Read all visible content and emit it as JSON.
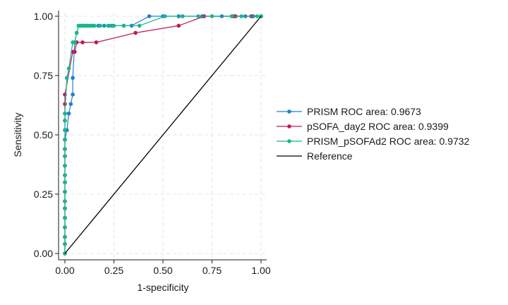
{
  "chart_data": {
    "type": "line",
    "title": "",
    "xlabel": "1-specificity",
    "ylabel": "Sensitivity",
    "xlim": [
      0,
      1
    ],
    "ylim": [
      0,
      1
    ],
    "xticks": [
      "0.00",
      "0.25",
      "0.50",
      "0.75",
      "1.00"
    ],
    "yticks": [
      "0.00",
      "0.25",
      "0.50",
      "0.75",
      "1.00"
    ],
    "grid": true,
    "legend_position": "right",
    "series": [
      {
        "name": "PRISM ROC area: 0.9673",
        "color": "#1f7ed6",
        "markers": true,
        "x": [
          0,
          0,
          0,
          0,
          0,
          0,
          0,
          0,
          0,
          0,
          0,
          0,
          0,
          0,
          0.01,
          0.02,
          0.03,
          0.04,
          0.04,
          0.05,
          0.06,
          0.07,
          0.09,
          0.11,
          0.14,
          0.17,
          0.2,
          0.24,
          0.3,
          0.34,
          0.43,
          0.5,
          0.58,
          0.6,
          0.7,
          0.8,
          0.86,
          0.92,
          0.96,
          1.0
        ],
        "y": [
          0,
          0.04,
          0.07,
          0.11,
          0.15,
          0.19,
          0.22,
          0.26,
          0.3,
          0.33,
          0.37,
          0.41,
          0.44,
          0.48,
          0.52,
          0.59,
          0.63,
          0.67,
          0.74,
          0.89,
          0.93,
          0.96,
          0.96,
          0.96,
          0.96,
          0.96,
          0.96,
          0.96,
          0.96,
          0.96,
          1.0,
          1.0,
          1.0,
          1.0,
          1.0,
          1.0,
          1.0,
          1.0,
          1.0,
          1.0
        ]
      },
      {
        "name": "pSOFA_day2 ROC area: 0.9399",
        "color": "#c0185b",
        "markers": true,
        "x": [
          0,
          0,
          0,
          0,
          0,
          0,
          0,
          0,
          0,
          0,
          0,
          0,
          0,
          0,
          0,
          0,
          0,
          0,
          0,
          0.04,
          0.05,
          0.06,
          0.09,
          0.16,
          0.36,
          0.58,
          0.71,
          0.86,
          0.87,
          0.95,
          1.0
        ],
        "y": [
          0,
          0.04,
          0.07,
          0.11,
          0.15,
          0.19,
          0.22,
          0.26,
          0.3,
          0.33,
          0.37,
          0.41,
          0.44,
          0.48,
          0.52,
          0.56,
          0.59,
          0.63,
          0.67,
          0.85,
          0.85,
          0.89,
          0.89,
          0.89,
          0.93,
          0.96,
          1.0,
          1.0,
          1.0,
          1.0,
          1.0
        ]
      },
      {
        "name": "PRISM_pSOFAd2 ROC area: 0.9732",
        "color": "#16b88a",
        "markers": true,
        "x": [
          0,
          0,
          0,
          0,
          0,
          0,
          0,
          0,
          0,
          0,
          0,
          0,
          0,
          0,
          0,
          0,
          0,
          0.01,
          0.02,
          0.04,
          0.05,
          0.06,
          0.07,
          0.08,
          0.09,
          0.1,
          0.11,
          0.12,
          0.13,
          0.14,
          0.15,
          0.18,
          0.22,
          0.23,
          0.25,
          0.3,
          0.38,
          0.51,
          0.6,
          0.68,
          0.75,
          0.85,
          0.9,
          0.98,
          1.0
        ],
        "y": [
          0,
          0.04,
          0.07,
          0.11,
          0.15,
          0.19,
          0.22,
          0.26,
          0.3,
          0.33,
          0.37,
          0.41,
          0.44,
          0.48,
          0.52,
          0.56,
          0.59,
          0.74,
          0.78,
          0.89,
          0.89,
          0.93,
          0.96,
          0.96,
          0.96,
          0.96,
          0.96,
          0.96,
          0.96,
          0.96,
          0.96,
          0.96,
          0.96,
          0.96,
          0.96,
          0.96,
          0.96,
          1.0,
          1.0,
          1.0,
          1.0,
          1.0,
          1.0,
          1.0,
          1.0
        ]
      },
      {
        "name": "Reference",
        "color": "#000000",
        "markers": false,
        "x": [
          0,
          1
        ],
        "y": [
          0,
          1
        ]
      }
    ]
  }
}
